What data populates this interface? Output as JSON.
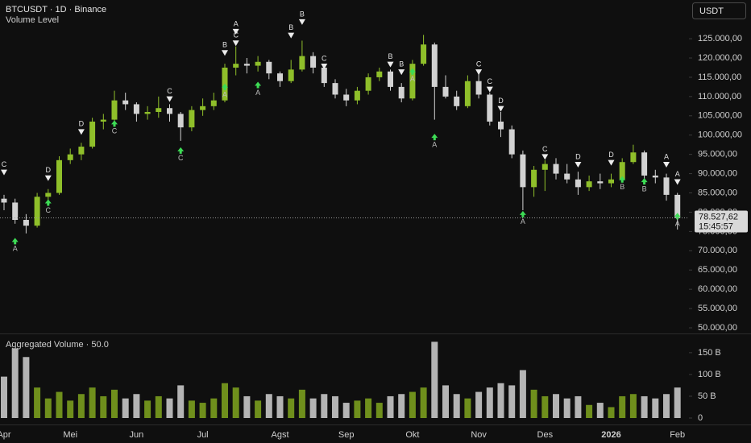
{
  "chart_data": [
    {
      "type": "candlestick",
      "title": "BTCUSDT · 1D · Binance",
      "subtitle": "Volume Level",
      "currency_button": "USDT",
      "up_color": "#8fbf2a",
      "down_color": "#d2d2d2",
      "grid": false,
      "categories": [
        "Apr",
        null,
        null,
        null,
        null,
        null,
        "Mei",
        null,
        null,
        null,
        null,
        null,
        "Jun",
        null,
        null,
        null,
        null,
        null,
        "Jul",
        null,
        null,
        null,
        null,
        null,
        null,
        "Agst",
        null,
        null,
        null,
        null,
        null,
        "Sep",
        null,
        null,
        null,
        null,
        null,
        "Okt",
        null,
        null,
        null,
        null,
        null,
        "Nov",
        null,
        null,
        null,
        null,
        null,
        "Des",
        null,
        null,
        null,
        null,
        null,
        "2026",
        null,
        null,
        null,
        null,
        null,
        "Feb"
      ],
      "ohlc": [
        [
          83500,
          84500,
          80500,
          82500
        ],
        [
          82500,
          83500,
          77000,
          78000
        ],
        [
          78000,
          79500,
          74500,
          76500
        ],
        [
          76500,
          85000,
          76000,
          84000
        ],
        [
          84000,
          86000,
          83000,
          85000
        ],
        [
          85000,
          94500,
          84500,
          93500
        ],
        [
          93500,
          96500,
          92500,
          95000
        ],
        [
          95000,
          98000,
          93500,
          97000
        ],
        [
          97000,
          104500,
          96500,
          103500
        ],
        [
          103500,
          105500,
          101500,
          104000
        ],
        [
          104000,
          111500,
          103000,
          109000
        ],
        [
          109000,
          111000,
          106500,
          108000
        ],
        [
          108000,
          108500,
          103500,
          105500
        ],
        [
          105500,
          107500,
          104000,
          106000
        ],
        [
          106000,
          110000,
          104500,
          107000
        ],
        [
          107000,
          108000,
          103500,
          105500
        ],
        [
          105500,
          106000,
          98500,
          102000
        ],
        [
          102000,
          107500,
          101000,
          106500
        ],
        [
          106500,
          109500,
          105000,
          107500
        ],
        [
          107500,
          111000,
          106500,
          109000
        ],
        [
          109000,
          118500,
          108500,
          117500
        ],
        [
          117500,
          123000,
          115500,
          118500
        ],
        [
          118500,
          120000,
          116000,
          118000
        ],
        [
          118000,
          120500,
          116500,
          119000
        ],
        [
          119000,
          119500,
          114500,
          116000
        ],
        [
          116000,
          116500,
          112500,
          114000
        ],
        [
          114000,
          119500,
          113500,
          117000
        ],
        [
          117000,
          124500,
          116500,
          120500
        ],
        [
          120500,
          121500,
          116000,
          117500
        ],
        [
          117500,
          118000,
          112500,
          113500
        ],
        [
          113500,
          114500,
          109500,
          110500
        ],
        [
          110500,
          112000,
          107500,
          109000
        ],
        [
          109000,
          112500,
          108000,
          111500
        ],
        [
          111500,
          116000,
          110500,
          115000
        ],
        [
          115000,
          117500,
          114000,
          116500
        ],
        [
          116500,
          117000,
          111500,
          112500
        ],
        [
          112500,
          113500,
          108500,
          109500
        ],
        [
          109500,
          119500,
          109000,
          118500
        ],
        [
          118500,
          126000,
          118000,
          123500
        ],
        [
          123500,
          124000,
          104000,
          112500
        ],
        [
          112500,
          115500,
          109500,
          110000
        ],
        [
          110000,
          111500,
          106500,
          107500
        ],
        [
          107500,
          115500,
          107000,
          114000
        ],
        [
          114000,
          116000,
          109500,
          110500
        ],
        [
          110500,
          111000,
          102500,
          103500
        ],
        [
          103500,
          106000,
          99500,
          101500
        ],
        [
          101500,
          102500,
          94000,
          95000
        ],
        [
          95000,
          96000,
          80500,
          86500
        ],
        [
          86500,
          92000,
          84000,
          91000
        ],
        [
          91000,
          93500,
          85500,
          92500
        ],
        [
          92500,
          94000,
          88500,
          90000
        ],
        [
          90000,
          92500,
          87500,
          88500
        ],
        [
          88500,
          90500,
          84500,
          86500
        ],
        [
          86500,
          89500,
          85500,
          88000
        ],
        [
          88000,
          90000,
          86000,
          87500
        ],
        [
          87500,
          90000,
          86500,
          88500
        ],
        [
          88500,
          94000,
          88000,
          93000
        ],
        [
          93000,
          97500,
          92500,
          95500
        ],
        [
          95500,
          96000,
          88500,
          89500
        ],
        [
          89500,
          91000,
          87500,
          89000
        ],
        [
          89000,
          90000,
          83000,
          84500
        ],
        [
          84500,
          85000,
          75500,
          78500
        ]
      ],
      "ylim": [
        48750,
        134000
      ],
      "yticks": [
        {
          "value": 125000,
          "label": "125.000,00"
        },
        {
          "value": 120000,
          "label": "120.000,00"
        },
        {
          "value": 115000,
          "label": "115.000,00"
        },
        {
          "value": 110000,
          "label": "110.000,00"
        },
        {
          "value": 105000,
          "label": "105.000,00"
        },
        {
          "value": 100000,
          "label": "100.000,00"
        },
        {
          "value": 95000,
          "label": "95.000,00"
        },
        {
          "value": 90000,
          "label": "90.000,00"
        },
        {
          "value": 85000,
          "label": "85.000,00"
        },
        {
          "value": 80000,
          "label": "80.000,00"
        },
        {
          "value": 75000,
          "label": "75.000,00"
        },
        {
          "value": 70000,
          "label": "70.000,00"
        },
        {
          "value": 65000,
          "label": "65.000,00"
        },
        {
          "value": 60000,
          "label": "60.000,00"
        },
        {
          "value": 55000,
          "label": "55.000,00"
        },
        {
          "value": 50000,
          "label": "50.000,00"
        }
      ],
      "last_price": {
        "value": 78527.62,
        "label": "78.527,62"
      },
      "countdown": "15:45:57",
      "signals": [
        {
          "text": "C",
          "index": 0,
          "price": 90000,
          "side": "above"
        },
        {
          "text": "A",
          "index": 1,
          "price": 72500,
          "side": "below"
        },
        {
          "text": "D",
          "index": 4,
          "price": 88500,
          "side": "above"
        },
        {
          "text": "C",
          "index": 4,
          "price": 82500,
          "side": "below"
        },
        {
          "text": "D",
          "index": 7,
          "price": 100500,
          "side": "above"
        },
        {
          "text": "C",
          "index": 10,
          "price": 103000,
          "side": "below"
        },
        {
          "text": "C",
          "index": 15,
          "price": 109000,
          "side": "above"
        },
        {
          "text": "C",
          "index": 16,
          "price": 96000,
          "side": "below"
        },
        {
          "text": "B",
          "index": 20,
          "price": 121000,
          "side": "above"
        },
        {
          "text": "A",
          "index": 20,
          "price": 112500,
          "side": "below"
        },
        {
          "text": "C",
          "index": 21,
          "price": 123500,
          "side": "above"
        },
        {
          "text": "A",
          "index": 21,
          "price": 126500,
          "side": "above"
        },
        {
          "text": "A",
          "index": 23,
          "price": 113000,
          "side": "below"
        },
        {
          "text": "B",
          "index": 26,
          "price": 125500,
          "side": "above"
        },
        {
          "text": "B",
          "index": 27,
          "price": 129000,
          "side": "above"
        },
        {
          "text": "C",
          "index": 29,
          "price": 117500,
          "side": "above"
        },
        {
          "text": "B",
          "index": 35,
          "price": 118000,
          "side": "above"
        },
        {
          "text": "B",
          "index": 36,
          "price": 116000,
          "side": "above"
        },
        {
          "text": "A",
          "index": 37,
          "price": 116500,
          "side": "below"
        },
        {
          "text": "A",
          "index": 39,
          "price": 99500,
          "side": "below"
        },
        {
          "text": "C",
          "index": 43,
          "price": 116000,
          "side": "above"
        },
        {
          "text": "C",
          "index": 44,
          "price": 111500,
          "side": "above"
        },
        {
          "text": "D",
          "index": 45,
          "price": 106500,
          "side": "above"
        },
        {
          "text": "A",
          "index": 47,
          "price": 79500,
          "side": "below"
        },
        {
          "text": "C",
          "index": 49,
          "price": 94000,
          "side": "above"
        },
        {
          "text": "D",
          "index": 52,
          "price": 92000,
          "side": "above"
        },
        {
          "text": "D",
          "index": 55,
          "price": 92500,
          "side": "above"
        },
        {
          "text": "B",
          "index": 56,
          "price": 88500,
          "side": "below"
        },
        {
          "text": "B",
          "index": 58,
          "price": 88000,
          "side": "below"
        },
        {
          "text": "A",
          "index": 60,
          "price": 92000,
          "side": "above"
        },
        {
          "text": "A",
          "index": 61,
          "price": 87500,
          "side": "above"
        },
        {
          "text": "A",
          "index": 61,
          "price": 79000,
          "side": "below"
        }
      ]
    },
    {
      "type": "volume",
      "title": "Aggregated Volume · 50.0",
      "up_color": "#6f8f1c",
      "down_color": "#b4b4b4",
      "values": [
        95000000000,
        160000000000,
        140000000000,
        70000000000,
        45000000000,
        60000000000,
        40000000000,
        55000000000,
        70000000000,
        50000000000,
        65000000000,
        45000000000,
        55000000000,
        40000000000,
        50000000000,
        45000000000,
        75000000000,
        40000000000,
        35000000000,
        45000000000,
        80000000000,
        70000000000,
        50000000000,
        40000000000,
        55000000000,
        50000000000,
        45000000000,
        65000000000,
        45000000000,
        55000000000,
        50000000000,
        35000000000,
        40000000000,
        45000000000,
        35000000000,
        50000000000,
        55000000000,
        60000000000,
        70000000000,
        175000000000,
        75000000000,
        55000000000,
        45000000000,
        60000000000,
        70000000000,
        80000000000,
        75000000000,
        110000000000,
        65000000000,
        50000000000,
        55000000000,
        45000000000,
        50000000000,
        30000000000,
        35000000000,
        25000000000,
        50000000000,
        55000000000,
        50000000000,
        45000000000,
        55000000000,
        70000000000
      ],
      "ylim": [
        0,
        183000000000
      ],
      "yticks": [
        {
          "value": 150000000000,
          "label": "150 B"
        },
        {
          "value": 100000000000,
          "label": "100 B"
        },
        {
          "value": 50000000000,
          "label": "50 B"
        },
        0
      ]
    }
  ]
}
